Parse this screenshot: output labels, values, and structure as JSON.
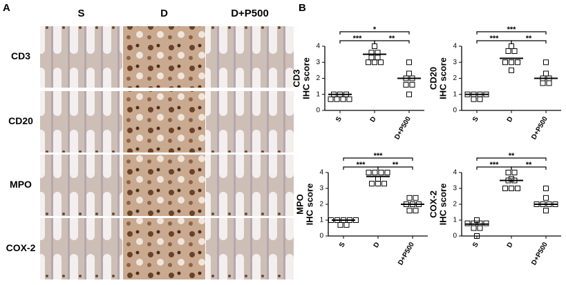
{
  "panel_a": {
    "label": "A",
    "columns": [
      "S",
      "D",
      "D+P500"
    ],
    "rows": [
      "CD3",
      "CD20",
      "MPO",
      "COX-2"
    ]
  },
  "panel_b": {
    "label": "B"
  },
  "chart_data": [
    {
      "type": "scatter",
      "ylabel": [
        "CD3",
        "IHC score"
      ],
      "categories": [
        "S",
        "D",
        "D+P500"
      ],
      "groups": [
        {
          "values": [
            1,
            1,
            1,
            0.7,
            0.7,
            0.7,
            0.7
          ],
          "mean": 1
        },
        {
          "values": [
            4,
            3.6,
            3.6,
            3.3,
            3.3,
            3,
            3,
            3
          ],
          "mean": 3.5
        },
        {
          "values": [
            3,
            2.3,
            2,
            2,
            1.6,
            1.6,
            1
          ],
          "mean": 2
        }
      ],
      "brackets": [
        {
          "from": 0,
          "to": 2,
          "label": "*"
        },
        {
          "from": 0,
          "to": 1,
          "label": "***"
        },
        {
          "from": 1,
          "to": 2,
          "label": "**"
        }
      ],
      "ylim": [
        0,
        4
      ],
      "yticks": [
        0,
        1,
        2,
        3,
        4
      ]
    },
    {
      "type": "scatter",
      "ylabel": [
        "CD20",
        "IHC score"
      ],
      "categories": [
        "S",
        "D",
        "D+P500"
      ],
      "groups": [
        {
          "values": [
            1,
            1,
            1,
            1,
            0.7,
            0.7
          ],
          "mean": 1
        },
        {
          "values": [
            4,
            3.7,
            3.7,
            3,
            3,
            3,
            2.5
          ],
          "mean": 3.25
        },
        {
          "values": [
            3,
            2.3,
            2,
            2,
            1.7,
            1.7
          ],
          "mean": 2
        }
      ],
      "brackets": [
        {
          "from": 0,
          "to": 2,
          "label": "***"
        },
        {
          "from": 0,
          "to": 1,
          "label": "***"
        },
        {
          "from": 1,
          "to": 2,
          "label": "**"
        }
      ],
      "ylim": [
        0,
        4
      ],
      "yticks": [
        0,
        1,
        2,
        3,
        4
      ]
    },
    {
      "type": "scatter",
      "ylabel": [
        "MPO",
        "IHC score"
      ],
      "categories": [
        "S",
        "D",
        "D+P500"
      ],
      "groups": [
        {
          "values": [
            1,
            1,
            1,
            1,
            1,
            0.7,
            0.7
          ],
          "mean": 1
        },
        {
          "values": [
            4,
            4,
            4,
            4,
            3.6,
            3.3,
            3.3,
            3.3
          ],
          "mean": 3.75
        },
        {
          "values": [
            2.4,
            2.4,
            2,
            2,
            2,
            1.6,
            1.6
          ],
          "mean": 2
        }
      ],
      "brackets": [
        {
          "from": 0,
          "to": 2,
          "label": "***"
        },
        {
          "from": 0,
          "to": 1,
          "label": "***"
        },
        {
          "from": 1,
          "to": 2,
          "label": "**"
        }
      ],
      "ylim": [
        0,
        4
      ],
      "yticks": [
        0,
        1,
        2,
        3,
        4
      ]
    },
    {
      "type": "scatter",
      "ylabel": [
        "COX-2",
        "IHC score"
      ],
      "categories": [
        "S",
        "D",
        "D+P500"
      ],
      "groups": [
        {
          "values": [
            1,
            0.8,
            0.8,
            0.8,
            0.8,
            0.5,
            0.5,
            0
          ],
          "mean": 0.75
        },
        {
          "values": [
            4,
            4,
            3.6,
            3.5,
            3.5,
            3,
            3,
            3
          ],
          "mean": 3.5
        },
        {
          "values": [
            3,
            2.4,
            2,
            2,
            2,
            2,
            1.6
          ],
          "mean": 2
        }
      ],
      "brackets": [
        {
          "from": 0,
          "to": 2,
          "label": "**"
        },
        {
          "from": 0,
          "to": 1,
          "label": "***"
        },
        {
          "from": 1,
          "to": 2,
          "label": "**"
        }
      ],
      "ylim": [
        0,
        4
      ],
      "yticks": [
        0,
        1,
        2,
        3,
        4
      ]
    }
  ]
}
